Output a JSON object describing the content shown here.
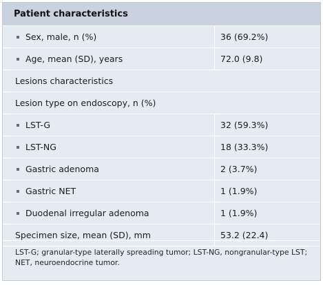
{
  "table": {
    "header": "Patient characteristics",
    "rows": [
      {
        "type": "bullet",
        "label": "Sex, male, n (%)",
        "value": "36 (69.2%)"
      },
      {
        "type": "bullet",
        "label": "Age, mean (SD), years",
        "value": "72.0 (9.8)"
      },
      {
        "type": "section",
        "label": "Lesions characteristics",
        "value": ""
      },
      {
        "type": "section",
        "label": "Lesion type on endoscopy, n (%)",
        "value": ""
      },
      {
        "type": "bullet",
        "label": "LST-G",
        "value": "32 (59.3%)"
      },
      {
        "type": "bullet",
        "label": "LST-NG",
        "value": "18 (33.3%)"
      },
      {
        "type": "bullet",
        "label": "Gastric adenoma",
        "value": "2 (3.7%)"
      },
      {
        "type": "bullet",
        "label": "Gastric NET",
        "value": "1 (1.9%)"
      },
      {
        "type": "bullet",
        "label": "Duodenal irregular adenoma",
        "value": "1 (1.9%)"
      },
      {
        "type": "plain",
        "label": "Specimen size, mean (SD), mm",
        "value": "53.2 (22.4)"
      }
    ],
    "footnote": "LST-G; granular-type laterally spreading tumor; LST-NG, nongranular-type LST; NET, neuroendocrine tumor."
  }
}
